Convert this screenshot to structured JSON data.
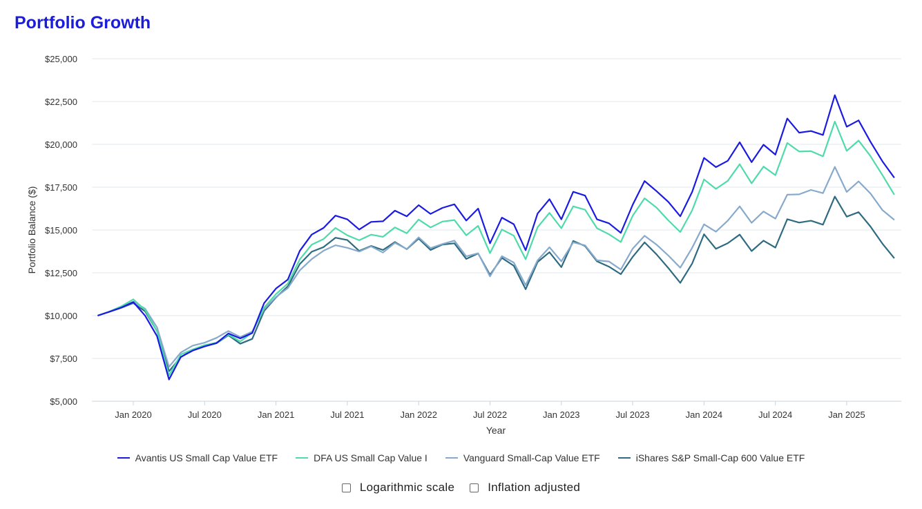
{
  "title": "Portfolio Growth",
  "options": {
    "log_label": "Logarithmic scale",
    "inflation_label": "Inflation adjusted"
  },
  "chart_data": {
    "type": "line",
    "title": "Portfolio Growth",
    "xlabel": "Year",
    "ylabel": "Portfolio Balance ($)",
    "ylim": [
      5000,
      25000
    ],
    "yticks": [
      5000,
      7500,
      10000,
      12500,
      15000,
      17500,
      20000,
      22500,
      25000
    ],
    "ytick_labels": [
      "$5,000",
      "$7,500",
      "$10,000",
      "$12,500",
      "$15,000",
      "$17,500",
      "$20,000",
      "$22,500",
      "$25,000"
    ],
    "xticks": [
      "Jan 2020",
      "Jul 2020",
      "Jan 2021",
      "Jul 2021",
      "Jan 2022",
      "Jul 2022",
      "Jan 2023",
      "Jul 2023",
      "Jan 2024",
      "Jul 2024",
      "Jan 2025"
    ],
    "xtick_dates": [
      "2020-01",
      "2020-07",
      "2021-01",
      "2021-07",
      "2022-01",
      "2022-07",
      "2023-01",
      "2023-07",
      "2024-01",
      "2024-07",
      "2025-01"
    ],
    "x_start": "2019-10",
    "x_end": "2025-04",
    "x": [
      "2019-10",
      "2019-11",
      "2019-12",
      "2020-01",
      "2020-02",
      "2020-03",
      "2020-04",
      "2020-05",
      "2020-06",
      "2020-07",
      "2020-08",
      "2020-09",
      "2020-10",
      "2020-11",
      "2020-12",
      "2021-01",
      "2021-02",
      "2021-03",
      "2021-04",
      "2021-05",
      "2021-06",
      "2021-07",
      "2021-08",
      "2021-09",
      "2021-10",
      "2021-11",
      "2021-12",
      "2022-01",
      "2022-02",
      "2022-03",
      "2022-04",
      "2022-05",
      "2022-06",
      "2022-07",
      "2022-08",
      "2022-09",
      "2022-10",
      "2022-11",
      "2022-12",
      "2023-01",
      "2023-02",
      "2023-03",
      "2023-04",
      "2023-05",
      "2023-06",
      "2023-07",
      "2023-08",
      "2023-09",
      "2023-10",
      "2023-11",
      "2023-12",
      "2024-01",
      "2024-02",
      "2024-03",
      "2024-04",
      "2024-05",
      "2024-06",
      "2024-07",
      "2024-08",
      "2024-09",
      "2024-10",
      "2024-11",
      "2024-12",
      "2025-01",
      "2025-02",
      "2025-03",
      "2025-04",
      "2025-05"
    ],
    "grid": true,
    "legend_position": "bottom",
    "series": [
      {
        "name": "Avantis US Small Cap Value ETF",
        "color": "#1a1ae0",
        "values": [
          10000,
          10230,
          10470,
          10790,
          9990,
          8800,
          6270,
          7590,
          7960,
          8200,
          8400,
          8960,
          8670,
          8980,
          10730,
          11580,
          12110,
          13780,
          14730,
          15120,
          15840,
          15620,
          15030,
          15470,
          15510,
          16130,
          15800,
          16450,
          15940,
          16290,
          16500,
          15550,
          16250,
          14220,
          15720,
          15340,
          13820,
          15960,
          16800,
          15620,
          17230,
          17010,
          15620,
          15390,
          14830,
          16470,
          17860,
          17270,
          16640,
          15800,
          17220,
          19210,
          18670,
          19040,
          20120,
          18960,
          19980,
          19400,
          21510,
          20680,
          20780,
          20550,
          22870,
          21030,
          21400,
          20150,
          19010,
          18050
        ]
      },
      {
        "name": "DFA US Small Cap Value I",
        "color": "#4fdba9",
        "values": [
          10000,
          10240,
          10550,
          10950,
          10330,
          9070,
          6510,
          7730,
          8030,
          8280,
          8420,
          8890,
          8490,
          9010,
          10470,
          11260,
          11870,
          13280,
          14140,
          14470,
          15120,
          14690,
          14400,
          14730,
          14600,
          15150,
          14810,
          15610,
          15150,
          15490,
          15580,
          14690,
          15240,
          13650,
          15030,
          14670,
          13290,
          15160,
          16000,
          15100,
          16380,
          16180,
          15100,
          14750,
          14300,
          15830,
          16850,
          16310,
          15560,
          14880,
          16150,
          17950,
          17400,
          17870,
          18840,
          17720,
          18700,
          18200,
          20080,
          19580,
          19600,
          19300,
          21330,
          19620,
          20220,
          19310,
          18200,
          17060
        ]
      },
      {
        "name": "Vanguard Small-Cap Value ETF",
        "color": "#86a9cc",
        "values": [
          10000,
          10230,
          10500,
          10820,
          10400,
          9310,
          7010,
          7850,
          8250,
          8420,
          8700,
          9100,
          8750,
          9070,
          10380,
          11090,
          11610,
          12640,
          13300,
          13790,
          14110,
          13960,
          13740,
          14040,
          13680,
          14250,
          13890,
          14570,
          13940,
          14180,
          14380,
          13460,
          13640,
          12290,
          13470,
          13100,
          11780,
          13230,
          13990,
          13170,
          14280,
          14100,
          13230,
          13160,
          12690,
          13910,
          14660,
          14150,
          13510,
          12800,
          13960,
          15330,
          14900,
          15550,
          16380,
          15420,
          16080,
          15660,
          17060,
          17080,
          17340,
          17150,
          18680,
          17220,
          17840,
          17130,
          16160,
          15590
        ]
      },
      {
        "name": "iShares S&P Small-Cap 600 Value ETF",
        "color": "#2e6b80",
        "values": [
          10000,
          10230,
          10460,
          10730,
          10250,
          9080,
          6750,
          7580,
          7990,
          8210,
          8390,
          8850,
          8360,
          8640,
          10270,
          11060,
          11710,
          13010,
          13730,
          14000,
          14550,
          14410,
          13780,
          14070,
          13830,
          14300,
          13880,
          14500,
          13830,
          14150,
          14220,
          13310,
          13630,
          12380,
          13370,
          12910,
          11540,
          13130,
          13700,
          12830,
          14360,
          14060,
          13170,
          12860,
          12420,
          13430,
          14280,
          13580,
          12780,
          11910,
          13040,
          14750,
          13900,
          14230,
          14730,
          13770,
          14380,
          13970,
          15630,
          15430,
          15540,
          15310,
          16950,
          15780,
          16040,
          15200,
          14200,
          13350
        ]
      }
    ]
  }
}
